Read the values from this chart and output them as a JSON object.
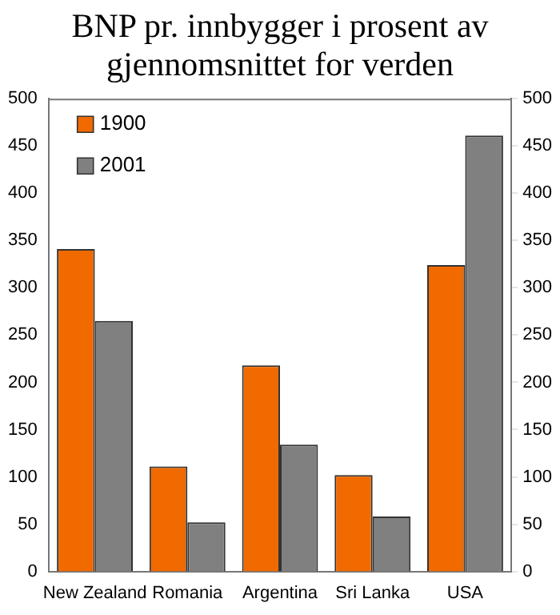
{
  "chart_data": {
    "type": "bar",
    "title": "BNP pr. innbygger i prosent av gjennomsnittet for verden",
    "categories": [
      "New Zealand",
      "Romania",
      "Argentina",
      "Sri Lanka",
      "USA"
    ],
    "series": [
      {
        "name": "1900",
        "color": "#f06a00",
        "values": [
          341,
          111,
          218,
          102,
          324
        ]
      },
      {
        "name": "2001",
        "color": "#808080",
        "values": [
          265,
          52,
          134,
          58,
          461
        ]
      }
    ],
    "ylim": [
      0,
      500
    ],
    "yticks": [
      0,
      50,
      100,
      150,
      200,
      250,
      300,
      350,
      400,
      450,
      500
    ],
    "y2lim": [
      0,
      500
    ],
    "y2ticks": [
      0,
      50,
      100,
      150,
      200,
      250,
      300,
      350,
      400,
      450,
      500
    ],
    "grid": false,
    "legend": "top left"
  }
}
